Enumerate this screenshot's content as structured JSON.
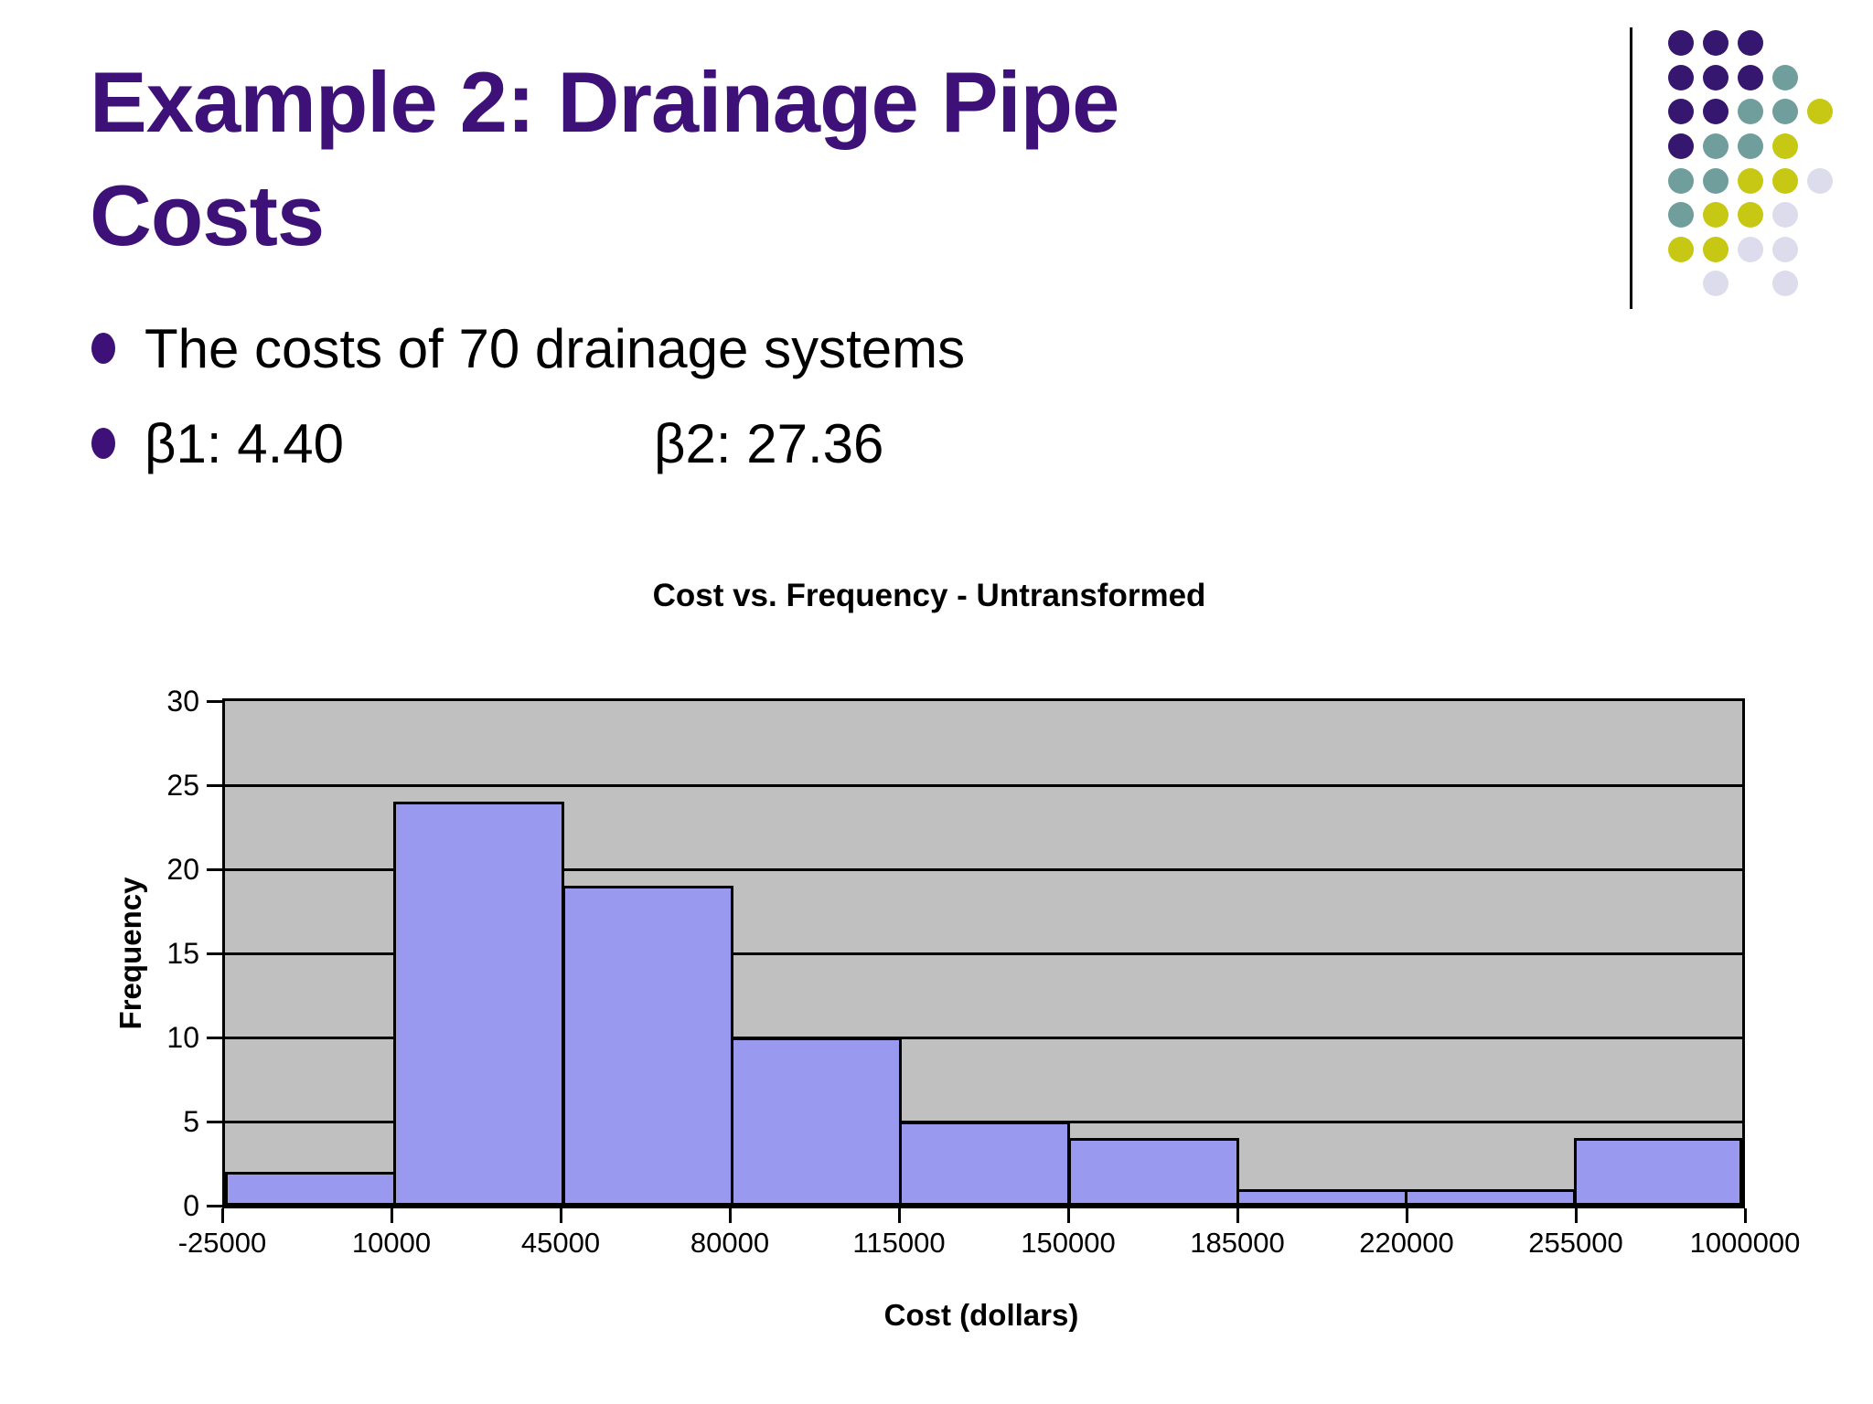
{
  "slide": {
    "title": "Example 2: Drainage Pipe Costs",
    "title_lines": [
      "Example 2: Drainage Pipe",
      "Costs"
    ],
    "bullets": [
      {
        "segments": [
          "The costs of 70 drainage systems"
        ]
      },
      {
        "segments": [
          "β1: 4.40",
          "β2: 27.36"
        ]
      }
    ]
  },
  "chart_data": {
    "type": "bar",
    "title": "Cost vs. Frequency - Untransformed",
    "xlabel": "Cost (dollars)",
    "ylabel": "Frequency",
    "categories": [
      "-25000",
      "10000",
      "45000",
      "80000",
      "115000",
      "150000",
      "185000",
      "220000",
      "255000",
      "1000000"
    ],
    "bin_edges": [
      -25000,
      10000,
      45000,
      80000,
      115000,
      150000,
      185000,
      220000,
      255000,
      1000000
    ],
    "values": [
      2,
      24,
      19,
      10,
      5,
      4,
      1,
      1,
      4
    ],
    "ylim": [
      0,
      30
    ],
    "ytick_interval": 5,
    "yticks": [
      0,
      5,
      10,
      15,
      20,
      25,
      30
    ],
    "grid": true,
    "legend": false
  },
  "colors": {
    "title_text": "#3d1178",
    "body_text": "#000000",
    "bullet_marker": "#3d1178",
    "chart_text": "#000000",
    "bar_fill": "#9999f0",
    "bar_border": "#000000",
    "plot_bg": "#c0c0c0",
    "gridline": "#000000",
    "divider": "#000000",
    "background": "#ffffff"
  },
  "decor": {
    "dot_palette": {
      "P": "#35176f",
      "T": "#6f9e9c",
      "Y": "#c6c813",
      "L": "#dcdcec"
    },
    "dot_pattern": [
      "PPP..",
      "PPPT.",
      "PPTTY",
      "PTTY.",
      "TTYYL",
      "TYYL.",
      "YYLL.",
      ".L.L."
    ]
  }
}
